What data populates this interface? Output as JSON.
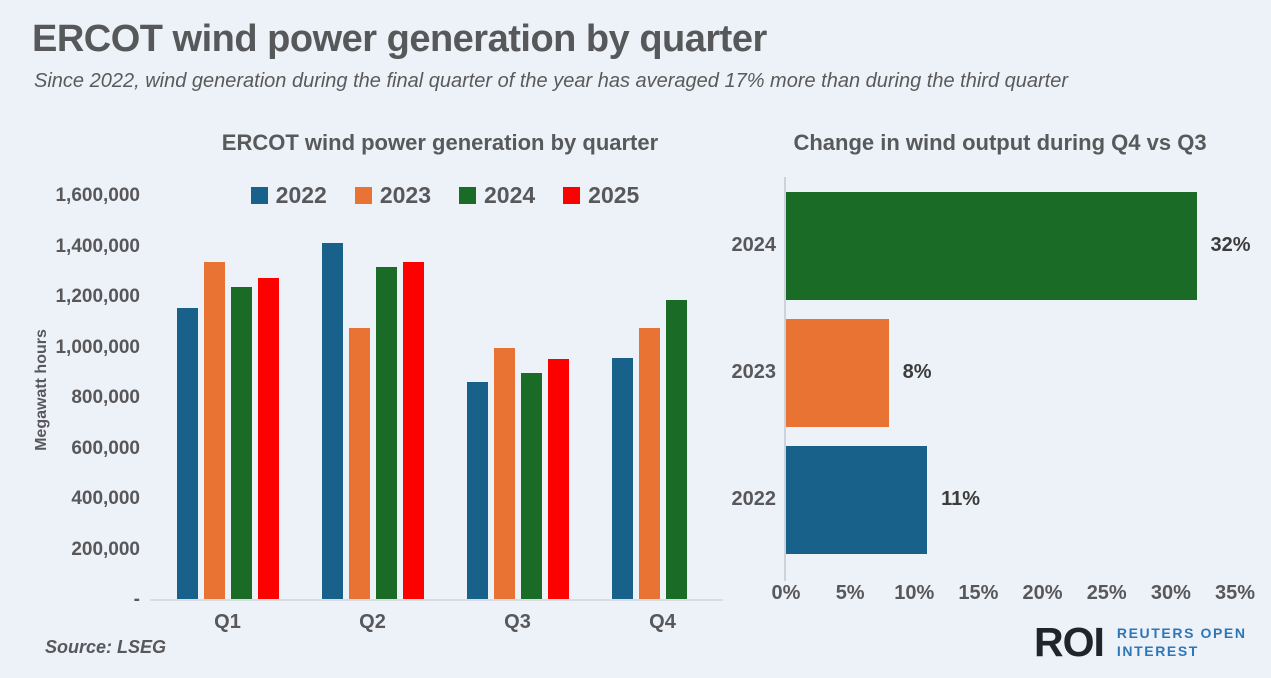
{
  "header": {
    "title": "ERCOT wind power generation by quarter",
    "subtitle": "Since 2022, wind generation during the final quarter of the year has averaged 17% more than during the third quarter"
  },
  "chart_data": [
    {
      "type": "bar",
      "title": "ERCOT wind power generation by quarter",
      "ylabel": "Megawatt hours",
      "categories": [
        "Q1",
        "Q2",
        "Q3",
        "Q4"
      ],
      "series": [
        {
          "name": "2022",
          "color": "#17618a",
          "values": [
            1155000,
            1413000,
            865000,
            960000
          ]
        },
        {
          "name": "2023",
          "color": "#e97332",
          "values": [
            1340000,
            1078000,
            1000000,
            1078000
          ]
        },
        {
          "name": "2024",
          "color": "#1a6b26",
          "values": [
            1240000,
            1320000,
            900000,
            1190000
          ]
        },
        {
          "name": "2025",
          "color": "#fd0000",
          "values": [
            1275000,
            1337000,
            955000,
            null
          ]
        }
      ],
      "ylim": [
        0,
        1600000
      ],
      "yticks": [
        {
          "label": "1,600,000",
          "value": 1600000
        },
        {
          "label": "1,400,000",
          "value": 1400000
        },
        {
          "label": "1,200,000",
          "value": 1200000
        },
        {
          "label": "1,000,000",
          "value": 1000000
        },
        {
          "label": "800,000",
          "value": 800000
        },
        {
          "label": "600,000",
          "value": 600000
        },
        {
          "label": "400,000",
          "value": 400000
        },
        {
          "label": "200,000",
          "value": 200000
        },
        {
          "label": "-",
          "value": 0
        }
      ],
      "legend_position": "top",
      "grid": false
    },
    {
      "type": "bar-horizontal",
      "title": "Change in wind output during Q4 vs Q3",
      "categories": [
        "2024",
        "2023",
        "2022"
      ],
      "values": [
        32,
        8,
        11
      ],
      "value_labels": [
        "32%",
        "8%",
        "11%"
      ],
      "colors": [
        "#1a6b26",
        "#e97332",
        "#17618a"
      ],
      "xlim": [
        0,
        35
      ],
      "xticks": [
        {
          "label": "0%",
          "value": 0
        },
        {
          "label": "5%",
          "value": 5
        },
        {
          "label": "10%",
          "value": 10
        },
        {
          "label": "15%",
          "value": 15
        },
        {
          "label": "20%",
          "value": 20
        },
        {
          "label": "25%",
          "value": 25
        },
        {
          "label": "30%",
          "value": 30
        },
        {
          "label": "35%",
          "value": 35
        }
      ],
      "grid": false
    }
  ],
  "footer": {
    "source": "Source: LSEG",
    "logo": {
      "mark": "ROI",
      "line1": "REUTERS OPEN",
      "line2": "INTEREST"
    }
  }
}
